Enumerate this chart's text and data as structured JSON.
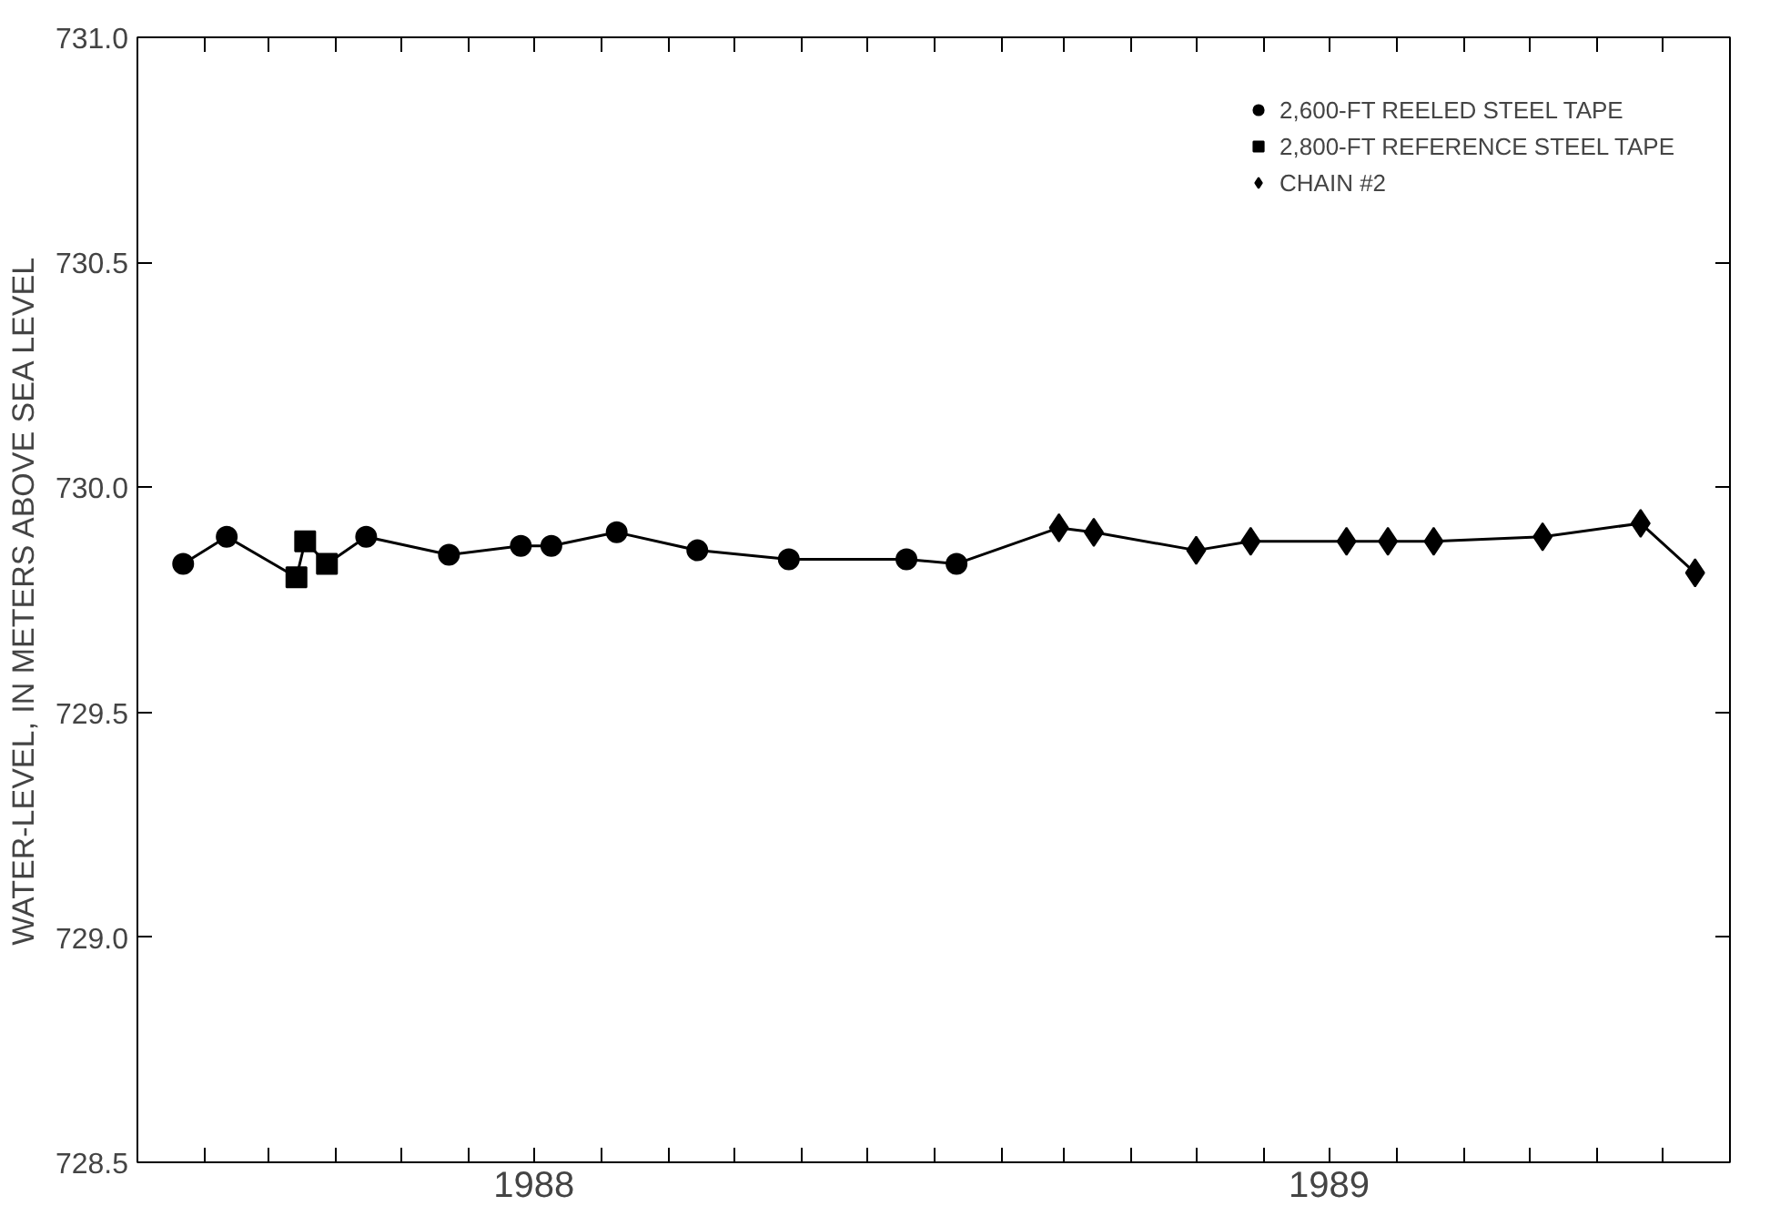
{
  "chart_data": {
    "type": "scatter",
    "ylabel": "WATER-LEVEL, IN METERS ABOVE SEA LEVEL",
    "xlim": [
      "1988-01-01",
      "1990-01-01"
    ],
    "ylim": [
      728.5,
      731.0
    ],
    "yticks": [
      {
        "value": 728.5,
        "label": "728.5"
      },
      {
        "value": 729.0,
        "label": "729.0"
      },
      {
        "value": 729.5,
        "label": "729.5"
      },
      {
        "value": 730.0,
        "label": "730.0"
      },
      {
        "value": 730.5,
        "label": "730.5"
      },
      {
        "value": 731.0,
        "label": "731.0"
      }
    ],
    "xticks": [
      {
        "value": "1988-02-01",
        "label": null
      },
      {
        "value": "1988-03-01",
        "label": null
      },
      {
        "value": "1988-04-01",
        "label": null
      },
      {
        "value": "1988-05-01",
        "label": null
      },
      {
        "value": "1988-06-01",
        "label": null
      },
      {
        "value": "1988-07-01",
        "label": "1988"
      },
      {
        "value": "1988-08-01",
        "label": null
      },
      {
        "value": "1988-09-01",
        "label": null
      },
      {
        "value": "1988-10-01",
        "label": null
      },
      {
        "value": "1988-11-01",
        "label": null
      },
      {
        "value": "1988-12-01",
        "label": null
      },
      {
        "value": "1989-01-01",
        "label": null
      },
      {
        "value": "1989-02-01",
        "label": null
      },
      {
        "value": "1989-03-01",
        "label": null
      },
      {
        "value": "1989-04-01",
        "label": null
      },
      {
        "value": "1989-05-01",
        "label": null
      },
      {
        "value": "1989-06-01",
        "label": null
      },
      {
        "value": "1989-07-01",
        "label": "1989"
      },
      {
        "value": "1989-08-01",
        "label": null
      },
      {
        "value": "1989-09-01",
        "label": null
      },
      {
        "value": "1989-10-01",
        "label": null
      },
      {
        "value": "1989-11-01",
        "label": null
      },
      {
        "value": "1989-12-01",
        "label": null
      }
    ],
    "grid": false,
    "legend": "top right",
    "series": [
      {
        "type": "line",
        "color": "#000000",
        "marker": "none",
        "x": [
          "1988-01-22",
          "1988-02-11",
          "1988-03-14",
          "1988-03-18",
          "1988-03-28",
          "1988-04-15",
          "1988-05-23",
          "1988-06-25",
          "1988-07-09",
          "1988-08-08",
          "1988-09-14",
          "1988-10-26",
          "1988-12-19",
          "1989-01-11",
          "1989-02-27",
          "1989-03-15",
          "1989-05-01",
          "1989-05-26",
          "1989-07-09",
          "1989-07-28",
          "1989-08-18",
          "1989-10-07",
          "1989-11-21",
          "1989-12-16"
        ],
        "values": [
          729.83,
          729.89,
          729.8,
          729.88,
          729.83,
          729.89,
          729.85,
          729.87,
          729.87,
          729.9,
          729.86,
          729.84,
          729.84,
          729.83,
          729.91,
          729.9,
          729.86,
          729.88,
          729.88,
          729.88,
          729.88,
          729.89,
          729.92,
          729.81
        ]
      },
      {
        "name": "2,600-FT REELED STEEL TAPE",
        "color": "#000000",
        "marker": "circle",
        "x": [
          "1988-01-22",
          "1988-02-11",
          "1988-04-15",
          "1988-05-23",
          "1988-06-25",
          "1988-07-09",
          "1988-08-08",
          "1988-09-14",
          "1988-10-26",
          "1988-12-19",
          "1989-01-11"
        ],
        "values": [
          729.83,
          729.89,
          729.89,
          729.85,
          729.87,
          729.87,
          729.9,
          729.86,
          729.84,
          729.84,
          729.83
        ]
      },
      {
        "name": "2,800-FT REFERENCE STEEL TAPE",
        "color": "#000000",
        "marker": "square",
        "x": [
          "1988-03-14",
          "1988-03-18",
          "1988-03-28"
        ],
        "values": [
          729.8,
          729.88,
          729.83
        ]
      },
      {
        "name": "CHAIN #2",
        "color": "#000000",
        "marker": "diamond",
        "x": [
          "1989-02-27",
          "1989-03-15",
          "1989-05-01",
          "1989-05-26",
          "1989-07-09",
          "1989-07-28",
          "1989-08-18",
          "1989-10-07",
          "1989-11-21",
          "1989-12-16"
        ],
        "values": [
          729.91,
          729.9,
          729.86,
          729.88,
          729.88,
          729.88,
          729.88,
          729.89,
          729.92,
          729.81
        ]
      }
    ]
  }
}
